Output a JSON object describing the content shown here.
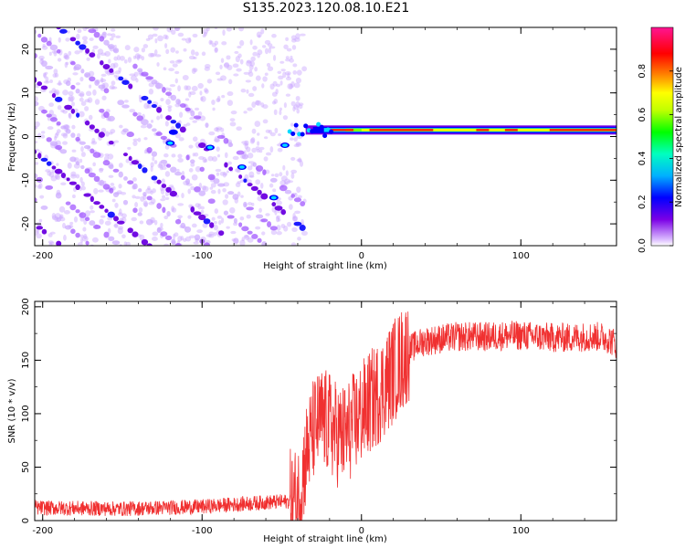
{
  "title": "S135.2023.120.08.10.E21",
  "chart_data": [
    {
      "type": "heatmap",
      "title": "S135.2023.120.08.10.E21",
      "xlabel": "Height of straight line (km)",
      "ylabel": "Frequency (Hz)",
      "xlim": [
        -205,
        160
      ],
      "ylim": [
        -25,
        25
      ],
      "x_ticks": [
        -200,
        -100,
        0,
        100
      ],
      "y_ticks": [
        -20,
        -10,
        0,
        10,
        20
      ],
      "colorbar": {
        "label": "Normalized spectral amplitude",
        "range": [
          0.0,
          1.0
        ],
        "ticks": [
          0.0,
          0.2,
          0.4,
          0.6,
          0.8
        ],
        "tick_labels": [
          "0.0",
          "0.2",
          "0.4",
          "0.6",
          "0.8"
        ],
        "colors": [
          "#ffffff",
          "#7b00e6",
          "#0000ff",
          "#00d8ff",
          "#00ff00",
          "#ffff00",
          "#ff8800",
          "#ff0000",
          "#ff00a0"
        ]
      },
      "features": {
        "diagonal_streaks_x_range": [
          -205,
          -35
        ],
        "diagonal_slope_hz_per_km": -0.3,
        "horizontal_band_x_range": [
          -35,
          160
        ],
        "horizontal_band_freq_hz": 1.5,
        "transition_height_km": -35
      }
    },
    {
      "type": "line",
      "xlabel": "Height of straight line (km)",
      "ylabel": "SNR (10 * v/v)",
      "xlim": [
        -205,
        160
      ],
      "ylim": [
        0,
        205
      ],
      "x_ticks": [
        -200,
        -100,
        0,
        100
      ],
      "y_ticks": [
        0,
        50,
        100,
        150,
        200
      ],
      "series": [
        {
          "color": "#f03030",
          "envelope_x": [
            -205,
            -150,
            -100,
            -80,
            -60,
            -45,
            -40,
            -38,
            -35,
            -30,
            -25,
            -20,
            -15,
            -10,
            -5,
            0,
            5,
            10,
            15,
            20,
            25,
            30,
            35,
            40,
            50,
            60,
            70,
            80,
            90,
            100,
            110,
            120,
            130,
            140,
            150,
            155,
            160
          ],
          "envelope_y": [
            12,
            11,
            13,
            15,
            17,
            18,
            20,
            30,
            60,
            85,
            95,
            90,
            80,
            80,
            90,
            100,
            110,
            118,
            128,
            140,
            150,
            160,
            165,
            168,
            170,
            172,
            172,
            172,
            173,
            173,
            172,
            171,
            171,
            172,
            172,
            170,
            165
          ]
        }
      ]
    }
  ]
}
